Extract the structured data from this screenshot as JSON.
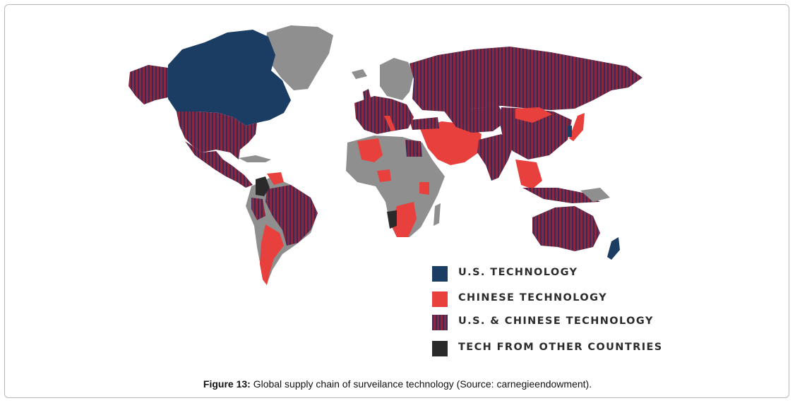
{
  "colors": {
    "us": "#1b3d64",
    "chinese": "#e8403c",
    "both_base": "#8a2840",
    "both_stripe": "#3a2a55",
    "other": "#2a2a2a",
    "none": "#8f8f8f"
  },
  "legend": [
    {
      "key": "us",
      "label": "U.S. TECHNOLOGY"
    },
    {
      "key": "chinese",
      "label": "CHINESE TECHNOLOGY"
    },
    {
      "key": "both",
      "label": "U.S. & CHINESE TECHNOLOGY"
    },
    {
      "key": "other",
      "label": "TECH FROM OTHER COUNTRIES"
    }
  ],
  "caption": {
    "label": "Figure 13:",
    "text": " Global supply chain of surveilance technology (Source: carnegieendowment)."
  }
}
